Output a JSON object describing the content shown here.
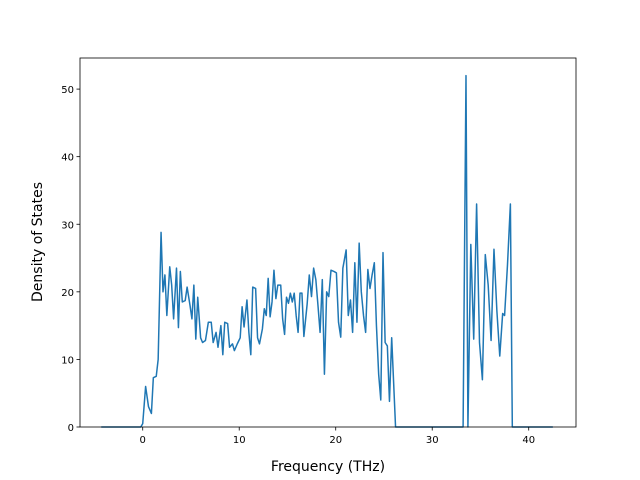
{
  "chart_data": {
    "type": "line",
    "x_label": "Frequency (THz)",
    "y_label": "Density of States",
    "xlim": [
      -6.5,
      44.9
    ],
    "ylim": [
      0,
      54.6
    ],
    "xticks": [
      0,
      10,
      20,
      30,
      40
    ],
    "yticks": [
      0,
      10,
      20,
      30,
      40,
      50
    ],
    "x": [
      -4.3,
      -0.2,
      0,
      0.3,
      0.6,
      0.9,
      1.1,
      1.4,
      1.6,
      1.9,
      2.1,
      2.3,
      2.5,
      2.8,
      3.0,
      3.2,
      3.5,
      3.7,
      3.9,
      4.1,
      4.4,
      4.6,
      4.9,
      5.1,
      5.3,
      5.5,
      5.7,
      6.0,
      6.2,
      6.5,
      6.8,
      7.1,
      7.3,
      7.6,
      7.8,
      8.1,
      8.3,
      8.5,
      8.8,
      9.0,
      9.3,
      9.5,
      9.8,
      10.1,
      10.3,
      10.5,
      10.8,
      11.0,
      11.2,
      11.4,
      11.7,
      11.9,
      12.1,
      12.4,
      12.6,
      12.8,
      13.0,
      13.2,
      13.4,
      13.6,
      13.8,
      14.0,
      14.3,
      14.5,
      14.7,
      14.9,
      15.1,
      15.3,
      15.5,
      15.7,
      15.9,
      16.1,
      16.3,
      16.5,
      16.7,
      17.04,
      17.26,
      17.49,
      17.71,
      17.94,
      18.16,
      18.38,
      18.61,
      18.83,
      19.06,
      19.28,
      19.51,
      19.84,
      20.07,
      20.29,
      20.52,
      20.74,
      21.08,
      21.3,
      21.53,
      21.75,
      21.98,
      22.2,
      22.43,
      22.65,
      22.88,
      23.1,
      23.33,
      23.55,
      23.77,
      24.0,
      24.22,
      24.45,
      24.67,
      24.9,
      25.12,
      25.35,
      25.57,
      25.8,
      26.2,
      33.2,
      33.5,
      33.7,
      34.0,
      34.3,
      34.6,
      34.9,
      35.2,
      35.5,
      35.8,
      36.1,
      36.4,
      36.7,
      37.0,
      37.3,
      37.5,
      37.8,
      38.1,
      38.3,
      42.5
    ],
    "series": [
      {
        "color": "#1f77b4",
        "values": [
          0,
          0,
          0.5,
          6,
          3,
          2,
          7.3,
          7.5,
          10,
          28.8,
          20,
          22.5,
          16.5,
          23.7,
          21,
          16,
          23.5,
          14.7,
          23,
          18.5,
          18.7,
          20.7,
          18,
          16,
          21,
          13,
          19.2,
          13.2,
          12.5,
          12.8,
          15.5,
          15.5,
          12.5,
          14,
          11.8,
          15,
          10.7,
          15.5,
          15.3,
          11.8,
          12.3,
          11.3,
          12.3,
          13.2,
          17.8,
          14.8,
          18.8,
          14,
          10.7,
          20.7,
          20.5,
          13.2,
          12.3,
          14.5,
          17.5,
          16.5,
          22,
          16.3,
          18.5,
          23.2,
          19,
          21,
          21,
          16,
          13.7,
          19.2,
          18.3,
          19.8,
          18.5,
          19.8,
          16.5,
          14,
          19.8,
          19.8,
          13.4,
          18.2,
          22.5,
          19.3,
          23.5,
          21.8,
          18,
          14,
          21.8,
          7.8,
          20,
          19.3,
          23.2,
          23,
          22.8,
          15.5,
          13.3,
          23.5,
          26.2,
          16.5,
          18.8,
          14,
          24.3,
          15.5,
          27.2,
          20,
          16.5,
          14,
          23.3,
          20.5,
          22.5,
          24.3,
          15,
          7.8,
          4,
          25.8,
          12.5,
          12,
          3.8,
          13.2,
          0,
          0,
          52,
          0,
          27,
          13,
          33,
          12.5,
          7,
          25.5,
          21,
          12.8,
          26.3,
          17.2,
          10.5,
          16.8,
          16.5,
          24,
          33,
          0,
          0
        ]
      }
    ]
  }
}
